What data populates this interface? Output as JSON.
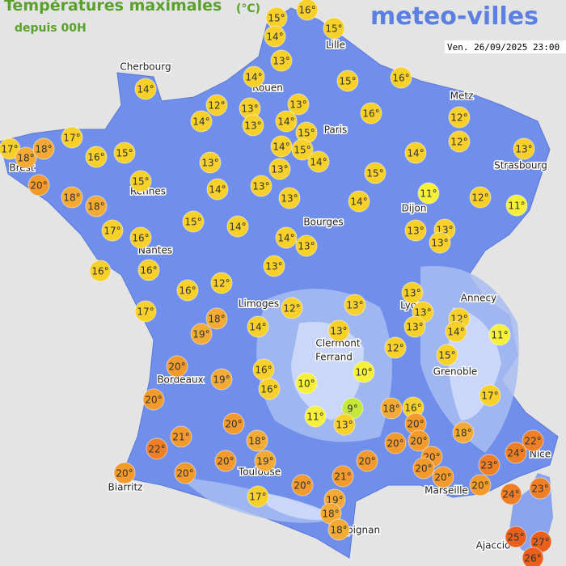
{
  "header": {
    "title": "Températures maximales",
    "unit": "(°C)",
    "subtitle": "depuis 00H",
    "logo": "meteo-villes",
    "timestamp": "Ven. 26/09/2025 23:00"
  },
  "cities": [
    "Cherbourg",
    "Lille",
    "Rouen",
    "Paris",
    "Metz",
    "Strasbourg",
    "Brest",
    "Rennes",
    "Dijon",
    "Bourges",
    "Nantes",
    "Limoges",
    "Lyon",
    "Annecy",
    "Clermont",
    "Ferrand",
    "Grenoble",
    "Bordeaux",
    "Nice",
    "Toulouse",
    "Marseille",
    "Biarritz",
    "Perpignan",
    "Ajaccio"
  ],
  "temperatures": [
    "15°",
    "16°",
    "14°",
    "15°",
    "13°",
    "14°",
    "15°",
    "16°",
    "14°",
    "12°",
    "13°",
    "13°",
    "14°",
    "13°",
    "14°",
    "15°",
    "16°",
    "12°",
    "17°",
    "17°",
    "18°",
    "18°",
    "16°",
    "15°",
    "14°",
    "15°",
    "14°",
    "13°",
    "13°",
    "14°",
    "12°",
    "13°",
    "20°",
    "15°",
    "14°",
    "13°",
    "15°",
    "18°",
    "18°",
    "13°",
    "14°",
    "11°",
    "12°",
    "11°",
    "15°",
    "14°",
    "17°",
    "16°",
    "14°",
    "13°",
    "13°",
    "13°",
    "13°",
    "16°",
    "16°",
    "13°",
    "16°",
    "12°",
    "17°",
    "18°",
    "12°",
    "13°",
    "13°",
    "13°",
    "13°",
    "12°",
    "14°",
    "11°",
    "19°",
    "14°",
    "13°",
    "12°",
    "15°",
    "20°",
    "16°",
    "10°",
    "10°",
    "19°",
    "16°",
    "17°",
    "20°",
    "11°",
    "9°",
    "13°",
    "18°",
    "16°",
    "20°",
    "20°",
    "18°",
    "21°",
    "18°",
    "20°",
    "20°",
    "22°",
    "22°",
    "24°",
    "20°",
    "19°",
    "20°",
    "20°",
    "20°",
    "23°",
    "20°",
    "20°",
    "21°",
    "20°",
    "20°",
    "20°",
    "23°",
    "24°",
    "17°",
    "19°",
    "18°",
    "18°",
    "25°",
    "27°",
    "26°"
  ]
}
